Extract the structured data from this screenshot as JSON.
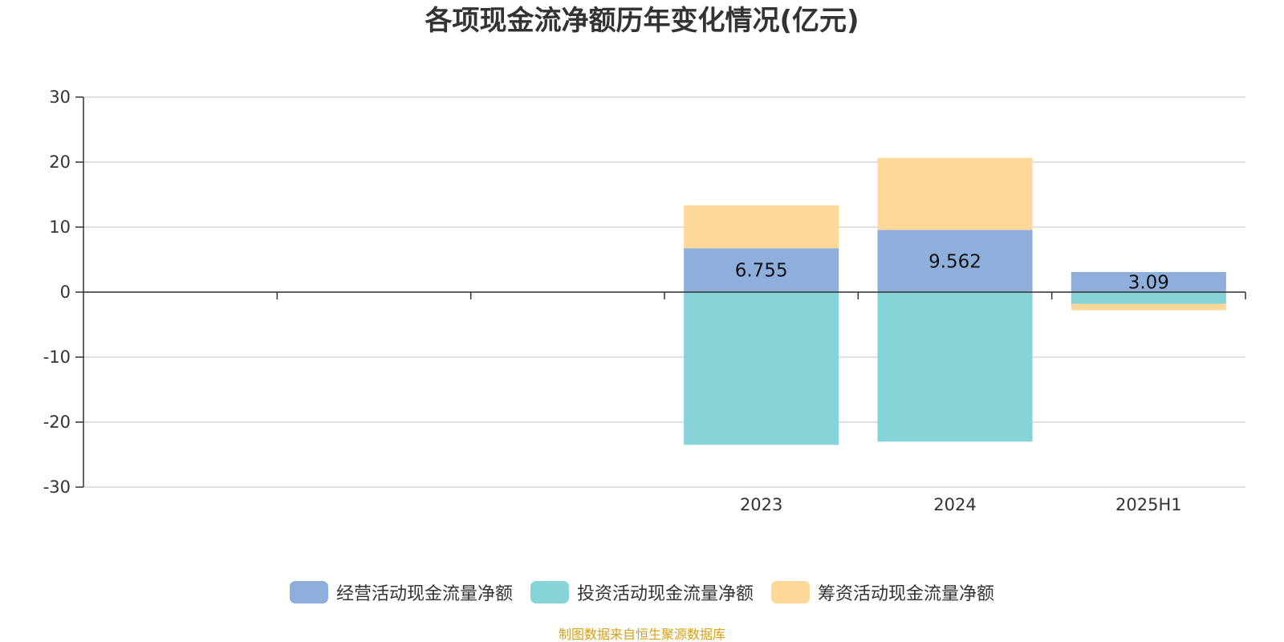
{
  "chart_data": {
    "type": "bar",
    "stacked": true,
    "title": "各项现金流净额历年变化情况(亿元)",
    "categories": [
      "",
      "",
      "",
      "2023",
      "2024",
      "2025H1"
    ],
    "series": [
      {
        "name": "经营活动现金流量净额",
        "color": "#8eaedb",
        "values": [
          null,
          null,
          null,
          6.755,
          9.562,
          3.09
        ],
        "labels": [
          "",
          "",
          "",
          "6.755",
          "9.562",
          "3.09"
        ]
      },
      {
        "name": "投资活动现金流量净额",
        "color": "#86d4d8",
        "values": [
          null,
          null,
          null,
          -23.5,
          -23.0,
          -1.8
        ]
      },
      {
        "name": "筹资活动现金流量净额",
        "color": "#fed898",
        "values": [
          null,
          null,
          null,
          6.6,
          11.1,
          -1.0
        ]
      }
    ],
    "ylim": [
      -30,
      30
    ],
    "yticks": [
      30,
      20,
      10,
      0,
      -10,
      -20,
      -30
    ],
    "grid": true,
    "legend_position": "bottom"
  },
  "source_note": "制图数据来自恒生聚源数据库",
  "source_note_color": "#d4a017"
}
